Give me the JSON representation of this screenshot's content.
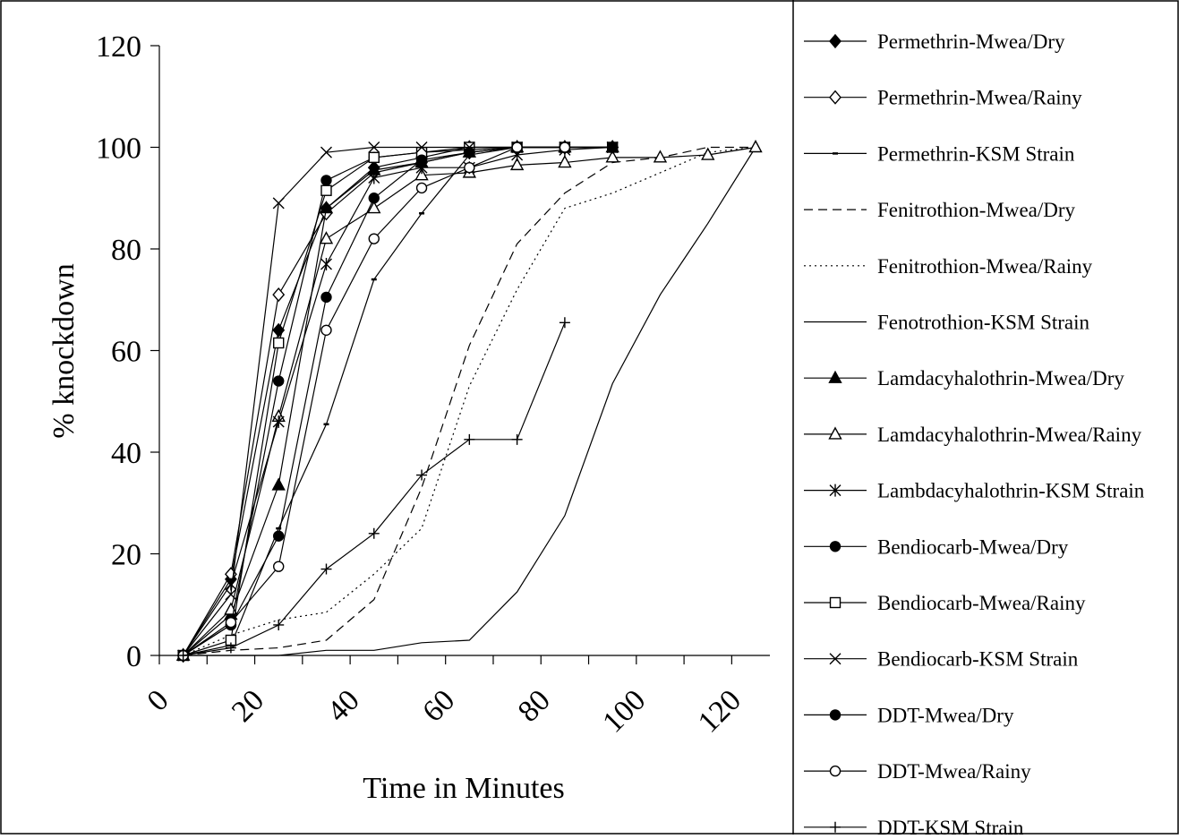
{
  "chart_data": {
    "type": "line",
    "title": "",
    "xlabel": "Time in Minutes",
    "ylabel": "% knockdown",
    "xlim": [
      0,
      128
    ],
    "ylim": [
      0,
      120
    ],
    "x_ticks": [
      "0",
      "20",
      "40",
      "60",
      "80",
      "100",
      "120"
    ],
    "y_ticks": [
      "0",
      "20",
      "40",
      "60",
      "80",
      "100",
      "120"
    ],
    "grid": false,
    "legend_position": "right",
    "series": [
      {
        "name": "Permethrin-Mwea/Dry",
        "marker": "diamond-filled",
        "dash": "solid",
        "x": [
          5,
          15,
          25,
          35,
          45,
          55,
          65,
          75,
          85,
          95
        ],
        "y": [
          0,
          15,
          64,
          88,
          96,
          98,
          100,
          100,
          100,
          100
        ]
      },
      {
        "name": "Permethrin-Mwea/Rainy",
        "marker": "diamond-open",
        "dash": "solid",
        "x": [
          5,
          15,
          25,
          35,
          45,
          55,
          65,
          75,
          85,
          95
        ],
        "y": [
          0,
          16,
          71,
          87,
          95,
          97,
          99,
          100,
          100,
          100
        ]
      },
      {
        "name": "Permethrin-KSM Strain",
        "marker": "dash",
        "dash": "solid",
        "x": [
          5,
          15,
          25,
          35,
          45,
          55,
          65,
          75,
          85,
          95
        ],
        "y": [
          0,
          2,
          25,
          45.5,
          74,
          87,
          98.5,
          100,
          100,
          100
        ]
      },
      {
        "name": "Fenitrothion-Mwea/Dry",
        "marker": "none",
        "dash": "dashed",
        "x": [
          5,
          15,
          25,
          35,
          45,
          55,
          65,
          75,
          85,
          95,
          105,
          115,
          125
        ],
        "y": [
          0,
          1,
          1.5,
          3,
          11,
          33,
          61,
          81,
          91,
          97,
          98,
          100,
          100
        ]
      },
      {
        "name": "Fenitrothion-Mwea/Rainy",
        "marker": "none",
        "dash": "dotted",
        "x": [
          5,
          15,
          25,
          35,
          45,
          55,
          65,
          75,
          85,
          95,
          105,
          115,
          125
        ],
        "y": [
          0,
          4,
          7,
          8.5,
          16,
          25,
          53,
          72,
          88,
          91,
          95,
          99,
          100
        ]
      },
      {
        "name": "Fenotrothion-KSM Strain",
        "marker": "none",
        "dash": "solid",
        "x": [
          5,
          15,
          25,
          35,
          45,
          55,
          65,
          75,
          85,
          95,
          105,
          115,
          125
        ],
        "y": [
          0,
          0,
          0,
          1,
          1,
          2.5,
          3,
          12.5,
          27.5,
          53.5,
          71,
          85,
          100
        ]
      },
      {
        "name": "Lamdacyhalothrin-Mwea/Dry",
        "marker": "triangle-filled",
        "dash": "solid",
        "x": [
          5,
          15,
          25,
          35,
          45,
          55,
          65,
          75,
          85,
          95
        ],
        "y": [
          0,
          8,
          33.5,
          88,
          95.5,
          97,
          99,
          100,
          100,
          100
        ]
      },
      {
        "name": "Lamdacyhalothrin-Mwea/Rainy",
        "marker": "triangle-open",
        "dash": "solid",
        "x": [
          5,
          15,
          25,
          35,
          45,
          55,
          65,
          75,
          85,
          95,
          105,
          115,
          125
        ],
        "y": [
          0,
          9,
          47,
          82,
          88,
          94.5,
          95,
          96.5,
          97,
          98,
          98,
          98.5,
          100
        ]
      },
      {
        "name": "Lambdacyhalothrin-KSM Strain",
        "marker": "asterisk",
        "dash": "solid",
        "x": [
          5,
          15,
          25,
          35,
          45,
          55,
          65,
          75,
          85,
          95
        ],
        "y": [
          0,
          14,
          46,
          77,
          94,
          96,
          96,
          98.5,
          99.5,
          100
        ]
      },
      {
        "name": "Bendiocarb-Mwea/Dry",
        "marker": "circle-filled",
        "dash": "solid",
        "x": [
          5,
          15,
          25,
          35,
          45,
          55,
          65,
          75,
          85,
          95
        ],
        "y": [
          0,
          6,
          54,
          93.5,
          98,
          99,
          99.5,
          100,
          100,
          100
        ]
      },
      {
        "name": "Bendiocarb-Mwea/Rainy",
        "marker": "square-open",
        "dash": "solid",
        "x": [
          5,
          15,
          25,
          35,
          45,
          55,
          65,
          75,
          85,
          95
        ],
        "y": [
          0,
          3,
          61.5,
          91.5,
          98,
          99,
          100,
          100,
          100,
          100
        ]
      },
      {
        "name": "Bendiocarb-KSM Strain",
        "marker": "x",
        "dash": "solid",
        "x": [
          5,
          15,
          25,
          35,
          45,
          55,
          65,
          75,
          85,
          95
        ],
        "y": [
          0,
          12,
          89,
          99,
          100,
          100,
          100,
          100,
          100,
          100
        ]
      },
      {
        "name": "DDT-Mwea/Dry",
        "marker": "circle-filled",
        "dash": "solid",
        "x": [
          5,
          15,
          25,
          35,
          45,
          55,
          65,
          75,
          85,
          95
        ],
        "y": [
          0,
          6,
          23.5,
          70.5,
          90,
          97.5,
          99,
          100,
          100,
          100
        ]
      },
      {
        "name": "DDT-Mwea/Rainy",
        "marker": "circle-open",
        "dash": "solid",
        "x": [
          5,
          15,
          25,
          35,
          45,
          55,
          65,
          75,
          85
        ],
        "y": [
          0,
          6.5,
          17.5,
          64,
          82,
          92,
          96,
          100,
          100
        ]
      },
      {
        "name": "DDT-KSM Strain",
        "marker": "plus",
        "dash": "solid",
        "x": [
          5,
          15,
          25,
          35,
          45,
          55,
          65,
          75,
          85
        ],
        "y": [
          0,
          1.5,
          6,
          17,
          24,
          35.5,
          42.5,
          42.5,
          65.5
        ]
      }
    ]
  }
}
